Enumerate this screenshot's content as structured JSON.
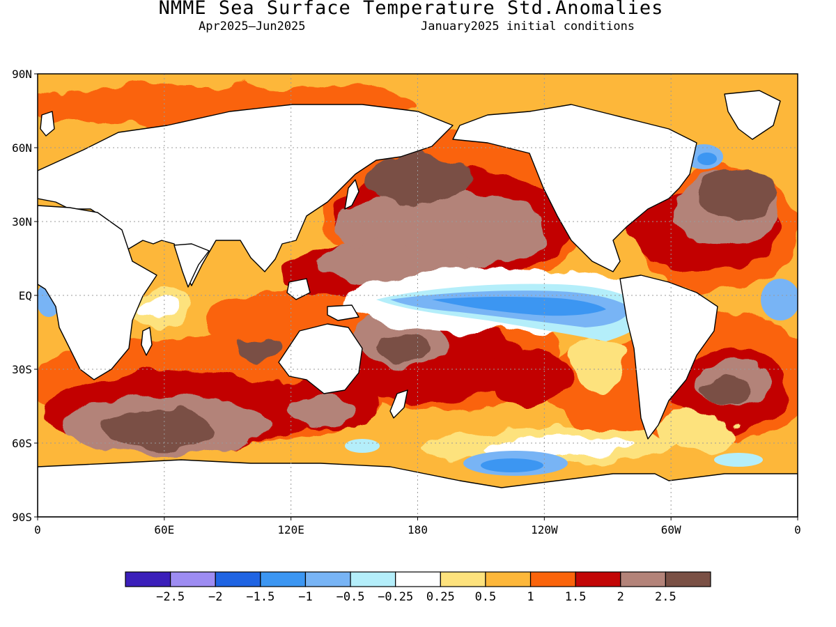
{
  "header": {
    "title": "NMME Sea Surface Temperature Std.Anomalies",
    "period": "Apr2025–Jun2025",
    "initial_conditions": "January2025 initial conditions"
  },
  "map": {
    "lat_labels": [
      "90N",
      "60N",
      "30N",
      "EQ",
      "30S",
      "60S",
      "90S"
    ],
    "lon_labels": [
      "0",
      "60E",
      "120E",
      "180",
      "120W",
      "60W",
      "0"
    ],
    "land_color": "#ffffff",
    "gridlines": "dotted"
  },
  "legend": {
    "colors": [
      "#3b1fba",
      "#9d8cf2",
      "#1f64e3",
      "#3c96f2",
      "#78b4f5",
      "#b4eefa",
      "#ffffff",
      "#fde27d",
      "#fdb73a",
      "#fa640b",
      "#c20606",
      "#b38379",
      "#7a5045"
    ],
    "labels": [
      "−2.5",
      "−2",
      "−1.5",
      "−1",
      "−0.5",
      "−0.25",
      "0.25",
      "0.5",
      "1",
      "1.5",
      "2",
      "2.5"
    ]
  }
}
